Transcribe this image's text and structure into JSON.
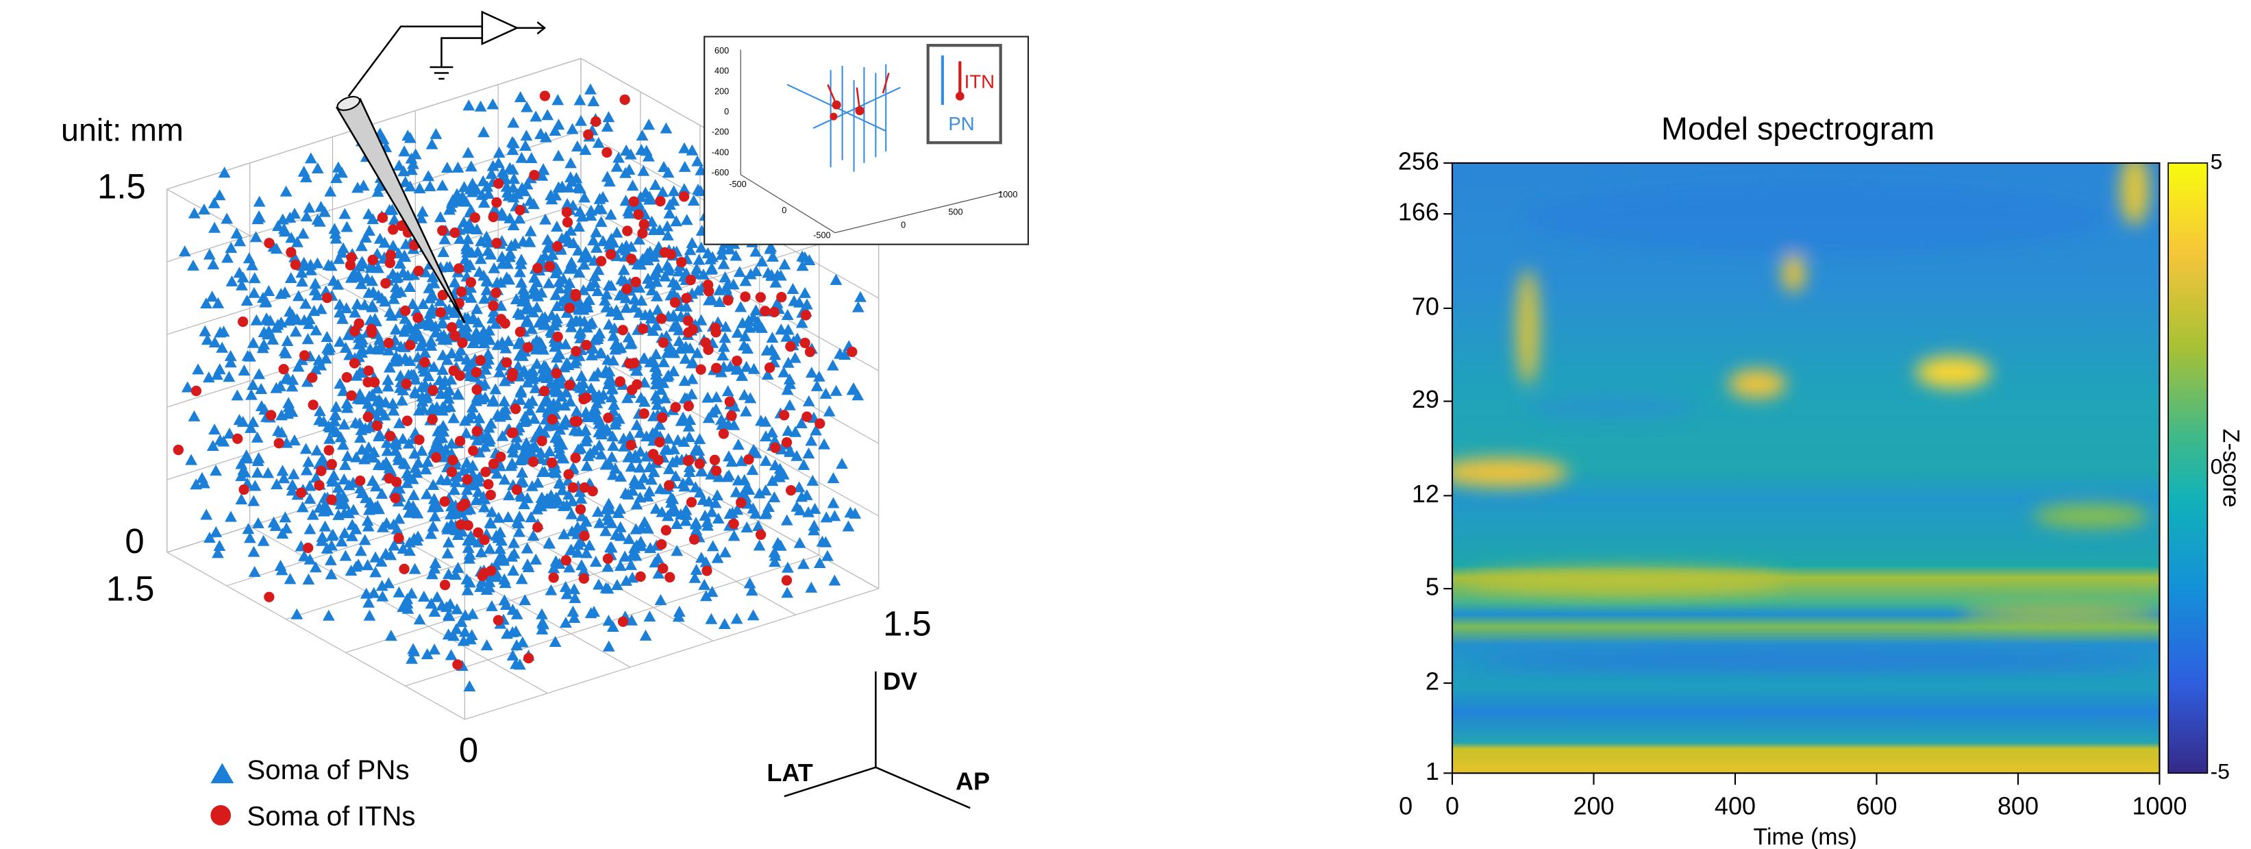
{
  "left_panel": {
    "unit_label": "unit: mm",
    "axis_labels": {
      "vertical_top": "1.5",
      "vertical_bottom": "0",
      "depth_end": "1.5",
      "width_end": "1.5",
      "width_start": "0"
    },
    "orientation": {
      "dv": "DV",
      "lat": "LAT",
      "ap": "AP"
    },
    "legend": [
      {
        "label": "Soma of PNs",
        "color": "#1b7fd8"
      },
      {
        "label": "Soma of ITNs",
        "color": "#d71a1a"
      }
    ],
    "inset": {
      "itn_label": "ITN",
      "pn_label": "PN",
      "y_ticks": [
        "600",
        "400",
        "200",
        "0",
        "-200",
        "-400",
        "-600"
      ],
      "floor_ticks_left": [
        "-500",
        "0",
        "-500"
      ],
      "floor_ticks_right": [
        "0",
        "500",
        "1000"
      ]
    }
  },
  "right_panel": {
    "title": "Model spectrogram",
    "y_ticks": [
      "256",
      "166",
      "70",
      "29",
      "12",
      "5",
      "2",
      "1"
    ],
    "x_ticks": [
      "0",
      "200",
      "400",
      "600",
      "800",
      "1000"
    ],
    "origin_label": "0",
    "x_label": "Time (ms)",
    "colorbar": {
      "label": "Z-score",
      "ticks": [
        "5",
        "0",
        "-5"
      ]
    }
  }
}
